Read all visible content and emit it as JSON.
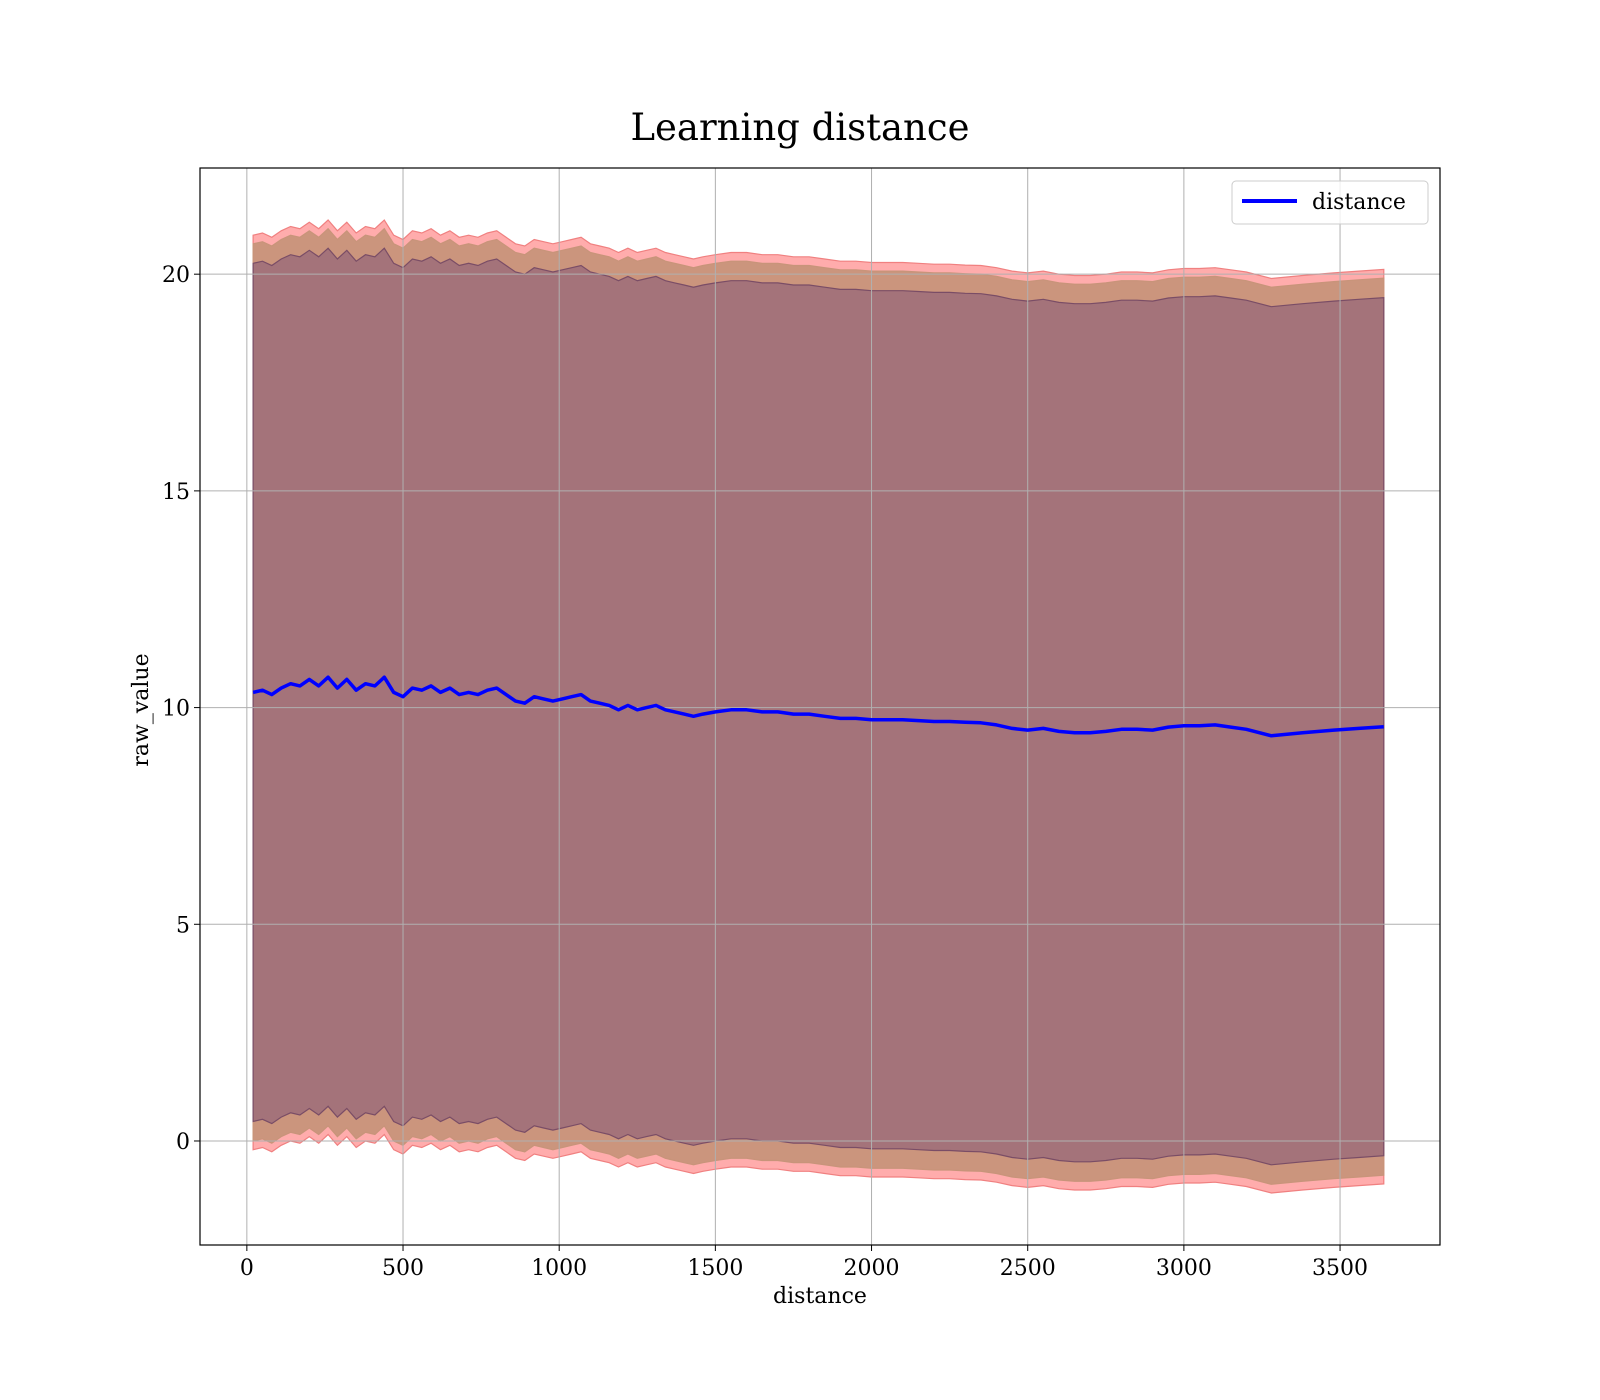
{
  "chart_data": {
    "type": "line",
    "title": "Learning distance",
    "xlabel": "distance",
    "ylabel": "raw_value",
    "xlim": [
      -150,
      3820
    ],
    "ylim": [
      -2.4,
      22.45
    ],
    "xticks": [
      0,
      500,
      1000,
      1500,
      2000,
      2500,
      3000,
      3500
    ],
    "yticks": [
      0,
      5,
      10,
      15,
      20
    ],
    "grid": true,
    "legend": {
      "placement": "top-right",
      "entries": [
        "distance"
      ]
    },
    "colors": {
      "line": "#0000ff",
      "band_outer": "#ff9e9e",
      "band_middle": "#c8947a",
      "band_inner": "#a1717a",
      "band_inner_edge": "#7a4d66",
      "band_outer_edge": "#f08080"
    },
    "series": [
      {
        "name": "distance",
        "x": [
          20,
          50,
          80,
          110,
          140,
          170,
          200,
          230,
          260,
          290,
          320,
          350,
          380,
          410,
          440,
          470,
          500,
          530,
          560,
          590,
          620,
          650,
          680,
          710,
          740,
          770,
          800,
          830,
          860,
          890,
          920,
          950,
          980,
          1010,
          1040,
          1070,
          1100,
          1130,
          1160,
          1190,
          1220,
          1250,
          1280,
          1310,
          1340,
          1370,
          1400,
          1430,
          1460,
          1500,
          1550,
          1600,
          1650,
          1700,
          1750,
          1800,
          1850,
          1900,
          1950,
          2000,
          2050,
          2100,
          2150,
          2200,
          2250,
          2300,
          2350,
          2400,
          2450,
          2500,
          2550,
          2600,
          2650,
          2700,
          2750,
          2800,
          2850,
          2900,
          2950,
          3000,
          3050,
          3100,
          3150,
          3200,
          3280,
          3380,
          3480,
          3560,
          3640
        ],
        "y": [
          10.35,
          10.4,
          10.3,
          10.45,
          10.55,
          10.5,
          10.65,
          10.5,
          10.7,
          10.45,
          10.65,
          10.4,
          10.55,
          10.5,
          10.7,
          10.35,
          10.25,
          10.45,
          10.4,
          10.5,
          10.35,
          10.45,
          10.3,
          10.35,
          10.3,
          10.4,
          10.45,
          10.3,
          10.15,
          10.1,
          10.25,
          10.2,
          10.15,
          10.2,
          10.25,
          10.3,
          10.15,
          10.1,
          10.05,
          9.95,
          10.05,
          9.95,
          10.0,
          10.05,
          9.95,
          9.9,
          9.85,
          9.8,
          9.85,
          9.9,
          9.95,
          9.95,
          9.9,
          9.9,
          9.85,
          9.85,
          9.8,
          9.75,
          9.75,
          9.72,
          9.72,
          9.72,
          9.7,
          9.68,
          9.68,
          9.66,
          9.65,
          9.6,
          9.52,
          9.48,
          9.52,
          9.45,
          9.42,
          9.42,
          9.45,
          9.5,
          9.5,
          9.48,
          9.55,
          9.58,
          9.58,
          9.6,
          9.55,
          9.5,
          9.35,
          9.42,
          9.48,
          9.52,
          9.56
        ]
      }
    ],
    "bands": [
      {
        "name": "",
        "offset_upper": 10.55,
        "offset_lower": 10.55
      },
      {
        "name": "",
        "offset_upper": 10.35,
        "offset_lower": 10.35
      },
      {
        "name": "",
        "offset_upper": 9.9,
        "offset_lower": 9.9
      }
    ]
  }
}
